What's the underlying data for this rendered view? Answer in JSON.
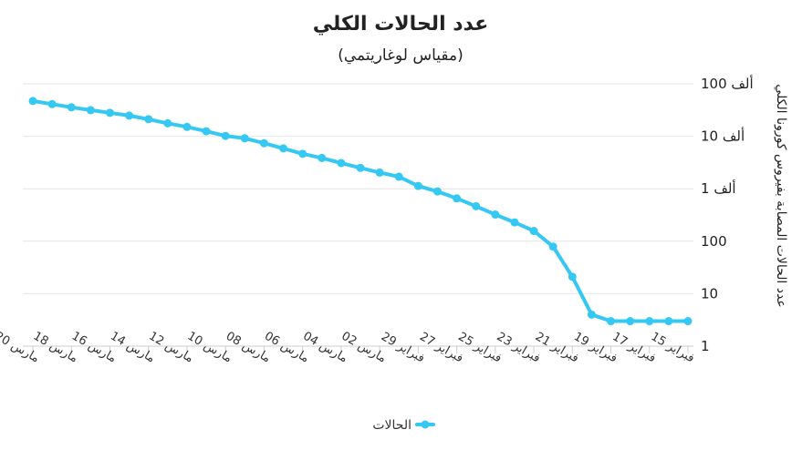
{
  "chart_data": {
    "type": "line",
    "title": "عدد الحالات الكلي",
    "subtitle": "(مقياس لوغاريتمي)",
    "ylabel": "عدد الحالات المصابة بفيروس كورونا الكلي",
    "xlabel": "",
    "y_scale": "log",
    "ylim": [
      1,
      100000
    ],
    "x_reversed": true,
    "y_axis_side": "right",
    "grid": true,
    "legend_position": "bottom-center",
    "y_ticks": [
      {
        "value": 1,
        "label": "1"
      },
      {
        "value": 10,
        "label": "10"
      },
      {
        "value": 100,
        "label": "100"
      },
      {
        "value": 1000,
        "label": "1 ألف"
      },
      {
        "value": 10000,
        "label": "10 ألف"
      },
      {
        "value": 100000,
        "label": "100 ألف"
      }
    ],
    "x_tick_labels": [
      "15 فبراير",
      "17 فبراير",
      "19 فبراير",
      "21 فبراير",
      "23 فبراير",
      "25 فبراير",
      "27 فبراير",
      "29 فبراير",
      "02 مارس",
      "04 مارس",
      "06 مارس",
      "08 مارس",
      "10 مارس",
      "12 مارس",
      "14 مارس",
      "16 مارس",
      "18 مارس",
      "20 مارس"
    ],
    "x": [
      "15 فبراير",
      "16 فبراير",
      "17 فبراير",
      "18 فبراير",
      "19 فبراير",
      "20 فبراير",
      "21 فبراير",
      "22 فبراير",
      "23 فبراير",
      "24 فبراير",
      "25 فبراير",
      "26 فبراير",
      "27 فبراير",
      "28 فبراير",
      "29 فبراير",
      "01 مارس",
      "02 مارس",
      "03 مارس",
      "04 مارس",
      "05 مارس",
      "06 مارس",
      "07 مارس",
      "08 مارس",
      "09 مارس",
      "10 مارس",
      "11 مارس",
      "12 مارس",
      "13 مارس",
      "14 مارس",
      "15 مارس",
      "16 مارس",
      "17 مارس",
      "18 مارس",
      "19 مارس",
      "20 مارس"
    ],
    "series": [
      {
        "name": "الحالات",
        "color": "#35c8f2",
        "values": [
          3,
          3,
          3,
          3,
          3,
          4,
          21,
          79,
          157,
          229,
          322,
          465,
          655,
          888,
          1128,
          1694,
          2036,
          2502,
          3089,
          3858,
          4636,
          5883,
          7375,
          9172,
          10149,
          12462,
          15113,
          17660,
          21157,
          24747,
          27980,
          31506,
          35713,
          41035,
          47021
        ]
      }
    ]
  }
}
